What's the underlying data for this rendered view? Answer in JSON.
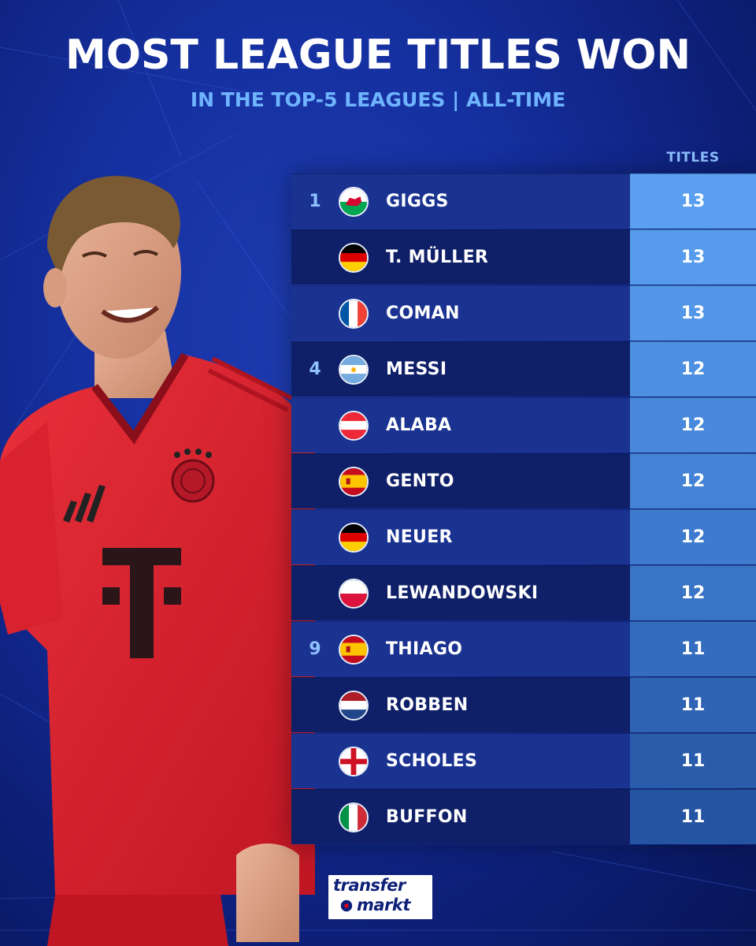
{
  "header": {
    "title": "MOST LEAGUE TITLES WON",
    "subtitle": "IN THE TOP-5 LEAGUES | ALL-TIME"
  },
  "table": {
    "column_header": "TITLES",
    "rows": [
      {
        "rank": "1",
        "flag": "wales-flag-icon",
        "name": "GIGGS",
        "titles": "13"
      },
      {
        "rank": "",
        "flag": "germany-flag-icon",
        "name": "T. MÜLLER",
        "titles": "13"
      },
      {
        "rank": "",
        "flag": "france-flag-icon",
        "name": "COMAN",
        "titles": "13"
      },
      {
        "rank": "4",
        "flag": "argentina-flag-icon",
        "name": "MESSI",
        "titles": "12"
      },
      {
        "rank": "",
        "flag": "austria-flag-icon",
        "name": "ALABA",
        "titles": "12"
      },
      {
        "rank": "",
        "flag": "spain-flag-icon",
        "name": "GENTO",
        "titles": "12"
      },
      {
        "rank": "",
        "flag": "germany-flag-icon",
        "name": "NEUER",
        "titles": "12"
      },
      {
        "rank": "",
        "flag": "poland-flag-icon",
        "name": "LEWANDOWSKI",
        "titles": "12"
      },
      {
        "rank": "9",
        "flag": "spain-flag-icon",
        "name": "THIAGO",
        "titles": "11"
      },
      {
        "rank": "",
        "flag": "netherlands-flag-icon",
        "name": "ROBBEN",
        "titles": "11"
      },
      {
        "rank": "",
        "flag": "england-flag-icon",
        "name": "SCHOLES",
        "titles": "11"
      },
      {
        "rank": "",
        "flag": "italy-flag-icon",
        "name": "BUFFON",
        "titles": "11"
      }
    ]
  },
  "logo": {
    "line1": "transfer",
    "line2": "markt"
  },
  "colors": {
    "row_dark": "#0f2068",
    "row_light": "#1a3290",
    "value_colors": [
      "#5a9ff0",
      "#569bec",
      "#5296e8",
      "#4d90e2",
      "#4889dc",
      "#4382d5",
      "#3e7bce",
      "#3974c6",
      "#346cbe",
      "#2f64b5",
      "#2a5cac",
      "#2554a3"
    ]
  }
}
